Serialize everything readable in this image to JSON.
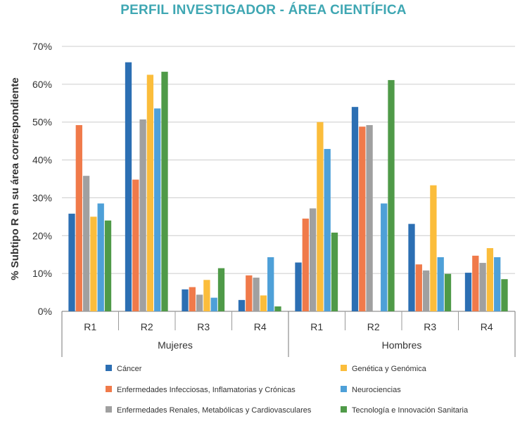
{
  "chart_data": {
    "type": "bar",
    "title": "PERFIL INVESTIGADOR - ÁREA CIENTÍFICA",
    "ylabel": "% Subtipo R en su área correspondiente",
    "xlabel": "",
    "ylim": [
      0,
      70
    ],
    "yticks": [
      0,
      10,
      20,
      30,
      40,
      50,
      60,
      70
    ],
    "ytick_labels": [
      "0%",
      "10%",
      "20%",
      "30%",
      "40%",
      "50%",
      "60%",
      "70%"
    ],
    "groups": [
      {
        "name": "Mujeres",
        "categories": [
          "R1",
          "R2",
          "R3",
          "R4"
        ]
      },
      {
        "name": "Hombres",
        "categories": [
          "R1",
          "R2",
          "R3",
          "R4"
        ]
      }
    ],
    "series": [
      {
        "name": "Cáncer",
        "color": "#2c6fb3",
        "values": [
          25.8,
          65.8,
          5.8,
          3.0,
          12.9,
          54.0,
          23.1,
          10.2
        ]
      },
      {
        "name": "Enfermedades Infecciosas, Inflamatorias y Crónicas",
        "color": "#f07a4a",
        "values": [
          49.2,
          34.8,
          6.4,
          9.5,
          24.5,
          48.8,
          12.4,
          14.7
        ]
      },
      {
        "name": "Enfermedades Renales, Metabólicas y Cardiovasculares",
        "color": "#a0a0a0",
        "values": [
          35.8,
          50.7,
          4.4,
          8.9,
          27.2,
          49.2,
          10.8,
          12.8
        ]
      },
      {
        "name": "Genética y Genómica",
        "color": "#fbbd3b",
        "values": [
          25.0,
          62.5,
          8.3,
          4.2,
          50.0,
          0,
          33.3,
          16.7
        ]
      },
      {
        "name": "Neurociencias",
        "color": "#4ea0d8",
        "values": [
          28.5,
          53.6,
          3.6,
          14.3,
          42.9,
          28.5,
          14.3,
          14.3
        ]
      },
      {
        "name": "Tecnología e Innovación Sanitaria",
        "color": "#4f9a48",
        "values": [
          24.0,
          63.3,
          11.4,
          1.3,
          20.8,
          61.1,
          9.9,
          8.5
        ]
      }
    ],
    "legend_position": "bottom",
    "grid": true
  }
}
